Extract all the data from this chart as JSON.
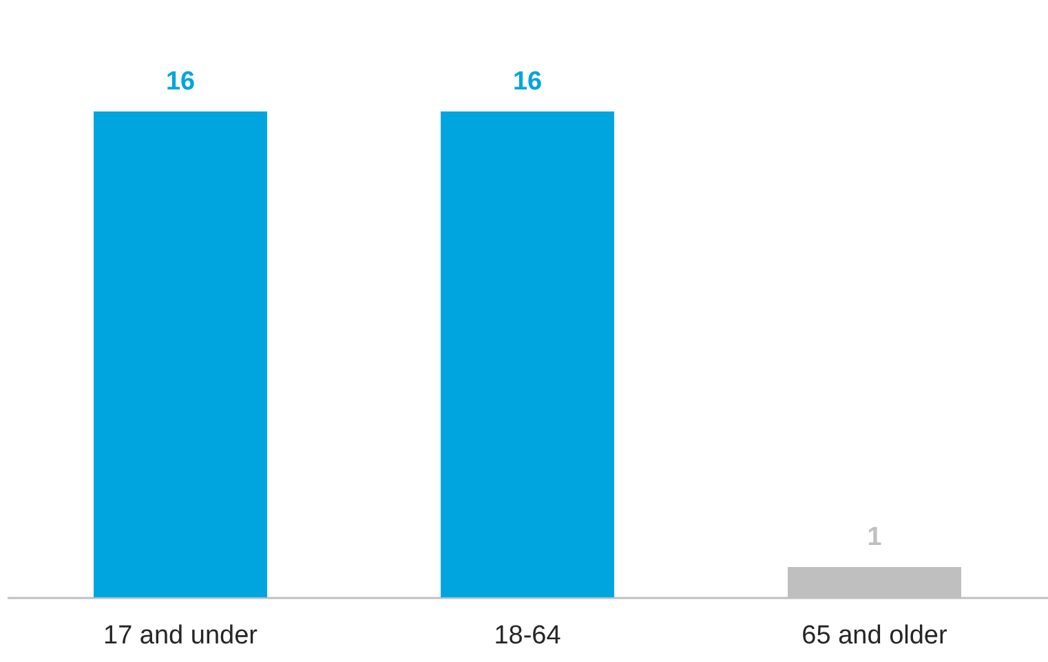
{
  "chart_data": {
    "type": "bar",
    "categories": [
      "17 and under",
      "18-64",
      "65 and older"
    ],
    "values": [
      16,
      16,
      1
    ],
    "colors": [
      "#00a5e0",
      "#00a5e0",
      "#bfbfbf"
    ],
    "data_labels": true,
    "tick_labels": "x",
    "grid": false
  }
}
